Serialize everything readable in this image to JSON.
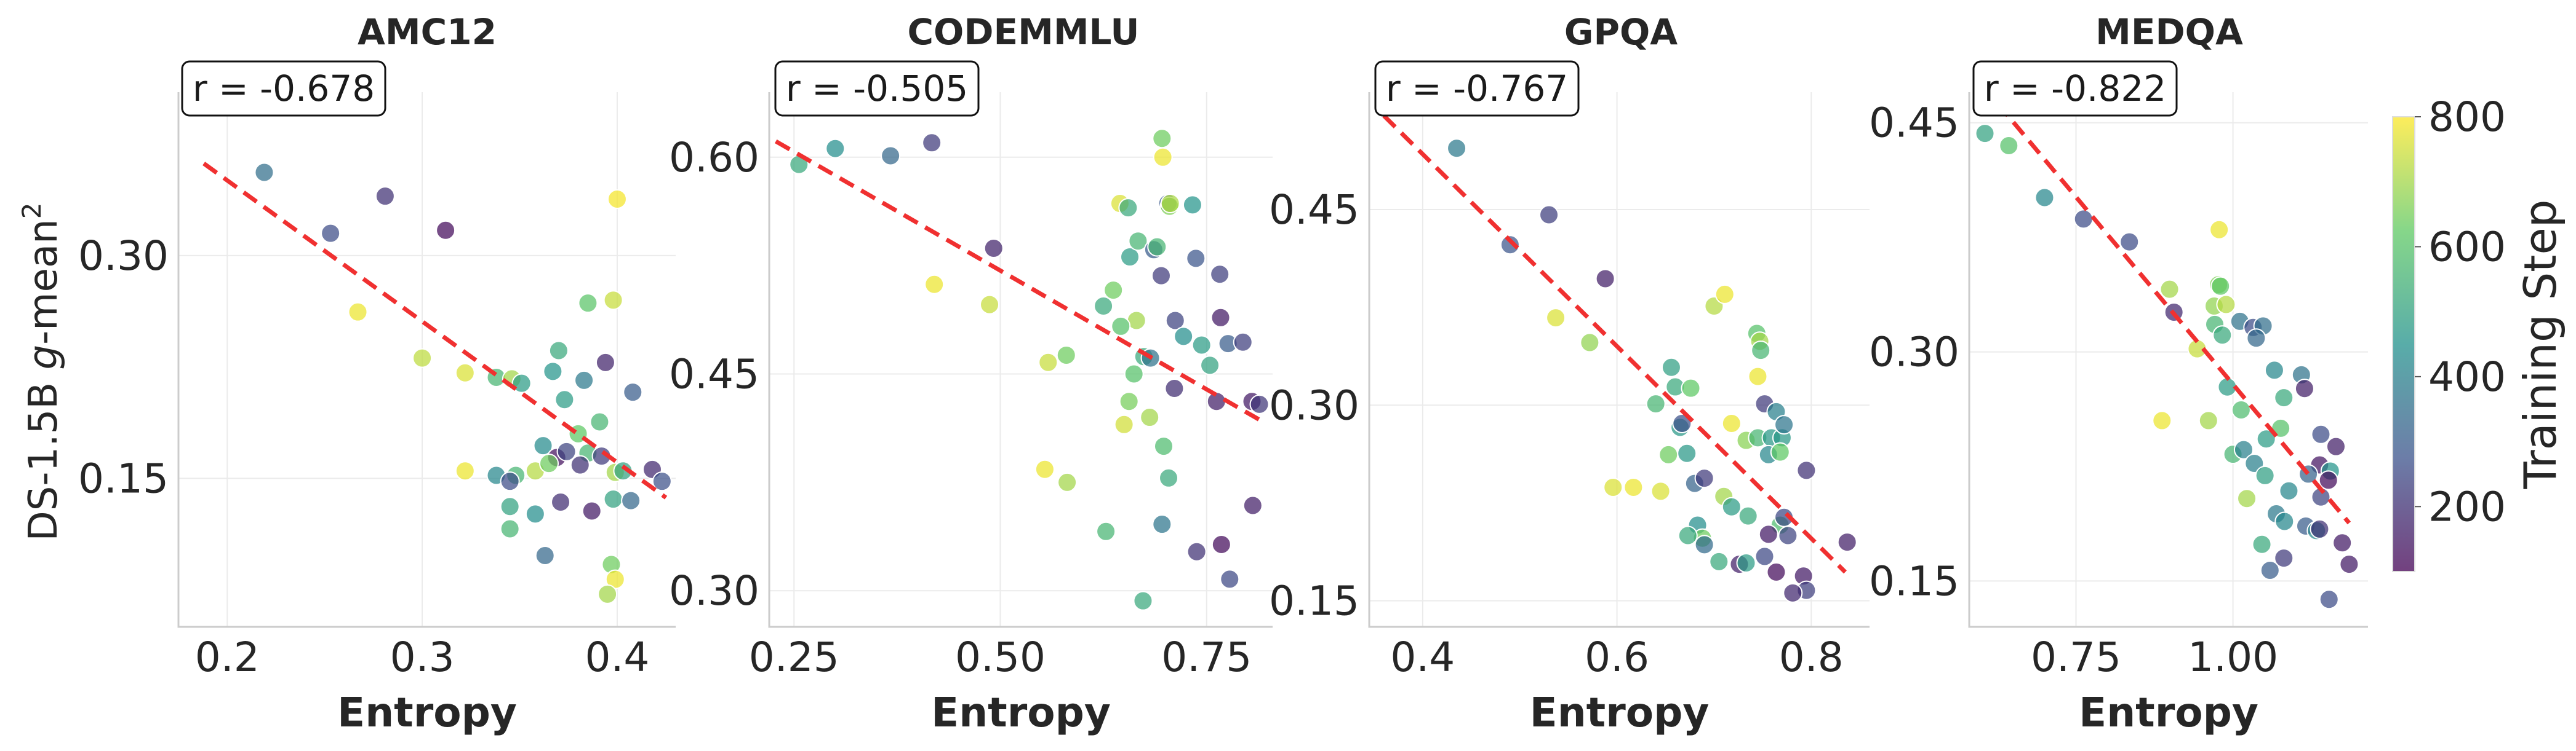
{
  "figure": {
    "ylabel": "DS-1.5B g-mean",
    "ylabel_prefix": "DS-1.5B ",
    "ylabel_italic": "g",
    "ylabel_suffix": "-mean",
    "ylabel_superscript": "2"
  },
  "colorbar": {
    "label": "Training Step",
    "colormap": "viridis",
    "range": [
      100,
      800
    ],
    "ticks": [
      200,
      400,
      600,
      800
    ],
    "tick_labels": [
      "200",
      "400",
      "600",
      "800"
    ],
    "gradient_colors": [
      "#440154",
      "#3b528b",
      "#21918c",
      "#5ec962",
      "#fde725"
    ]
  },
  "chart_data": [
    {
      "type": "scatter",
      "title": "AMC12",
      "xlabel": "Entropy",
      "xlim": [
        0.175,
        0.43
      ],
      "ylim": [
        0.05,
        0.41
      ],
      "xticks": [
        0.2,
        0.3,
        0.4
      ],
      "xtick_labels": [
        "0.2",
        "0.3",
        "0.4"
      ],
      "yticks": [
        0.15,
        0.3
      ],
      "ytick_labels": [
        "0.15",
        "0.30"
      ],
      "correlation_label": "r = -0.678",
      "trend_line": {
        "x": [
          0.188,
          0.425
        ],
        "y": [
          0.362,
          0.137
        ]
      },
      "points": [
        [
          0.219,
          0.356,
          350
        ],
        [
          0.253,
          0.315,
          260
        ],
        [
          0.281,
          0.34,
          200
        ],
        [
          0.312,
          0.317,
          120
        ],
        [
          0.267,
          0.262,
          780
        ],
        [
          0.3,
          0.231,
          730
        ],
        [
          0.322,
          0.221,
          760
        ],
        [
          0.338,
          0.218,
          560
        ],
        [
          0.346,
          0.217,
          700
        ],
        [
          0.351,
          0.214,
          480
        ],
        [
          0.37,
          0.236,
          520
        ],
        [
          0.367,
          0.222,
          460
        ],
        [
          0.383,
          0.216,
          380
        ],
        [
          0.394,
          0.228,
          170
        ],
        [
          0.408,
          0.208,
          300
        ],
        [
          0.385,
          0.268,
          610
        ],
        [
          0.398,
          0.27,
          740
        ],
        [
          0.373,
          0.203,
          480
        ],
        [
          0.38,
          0.18,
          620
        ],
        [
          0.391,
          0.188,
          560
        ],
        [
          0.362,
          0.172,
          430
        ],
        [
          0.369,
          0.164,
          130
        ],
        [
          0.374,
          0.168,
          240
        ],
        [
          0.385,
          0.167,
          560
        ],
        [
          0.392,
          0.165,
          220
        ],
        [
          0.399,
          0.154,
          700
        ],
        [
          0.403,
          0.155,
          500
        ],
        [
          0.418,
          0.156,
          180
        ],
        [
          0.423,
          0.148,
          270
        ],
        [
          0.338,
          0.152,
          420
        ],
        [
          0.348,
          0.152,
          560
        ],
        [
          0.345,
          0.148,
          260
        ],
        [
          0.322,
          0.155,
          780
        ],
        [
          0.358,
          0.155,
          720
        ],
        [
          0.365,
          0.16,
          640
        ],
        [
          0.381,
          0.159,
          200
        ],
        [
          0.345,
          0.131,
          500
        ],
        [
          0.358,
          0.126,
          440
        ],
        [
          0.371,
          0.134,
          190
        ],
        [
          0.387,
          0.128,
          150
        ],
        [
          0.398,
          0.136,
          500
        ],
        [
          0.407,
          0.135,
          330
        ],
        [
          0.345,
          0.116,
          560
        ],
        [
          0.363,
          0.098,
          330
        ],
        [
          0.397,
          0.092,
          640
        ],
        [
          0.399,
          0.082,
          780
        ],
        [
          0.395,
          0.072,
          700
        ],
        [
          0.4,
          0.338,
          790
        ]
      ]
    },
    {
      "type": "scatter",
      "title": "CODEMMLU",
      "xlabel": "Entropy",
      "xlim": [
        0.22,
        0.83
      ],
      "ylim": [
        0.275,
        0.645
      ],
      "xticks": [
        0.25,
        0.5,
        0.75
      ],
      "xtick_labels": [
        "0.25",
        "0.50",
        "0.75"
      ],
      "yticks": [
        0.3,
        0.45,
        0.6
      ],
      "ytick_labels": [
        "0.30",
        "0.45",
        "0.60"
      ],
      "correlation_label": "r = -0.505",
      "trend_line": {
        "x": [
          0.228,
          0.815
        ],
        "y": [
          0.611,
          0.418
        ]
      },
      "points": [
        [
          0.256,
          0.595,
          520
        ],
        [
          0.3,
          0.606,
          440
        ],
        [
          0.367,
          0.601,
          330
        ],
        [
          0.417,
          0.61,
          220
        ],
        [
          0.492,
          0.537,
          170
        ],
        [
          0.42,
          0.512,
          780
        ],
        [
          0.487,
          0.498,
          740
        ],
        [
          0.558,
          0.458,
          740
        ],
        [
          0.58,
          0.463,
          640
        ],
        [
          0.625,
          0.497,
          520
        ],
        [
          0.637,
          0.508,
          640
        ],
        [
          0.645,
          0.568,
          760
        ],
        [
          0.655,
          0.565,
          520
        ],
        [
          0.657,
          0.531,
          480
        ],
        [
          0.667,
          0.542,
          560
        ],
        [
          0.686,
          0.536,
          300
        ],
        [
          0.69,
          0.538,
          560
        ],
        [
          0.695,
          0.518,
          220
        ],
        [
          0.703,
          0.568,
          290
        ],
        [
          0.705,
          0.566,
          660
        ],
        [
          0.696,
          0.613,
          640
        ],
        [
          0.697,
          0.6,
          780
        ],
        [
          0.706,
          0.568,
          710
        ],
        [
          0.737,
          0.53,
          280
        ],
        [
          0.766,
          0.519,
          230
        ],
        [
          0.733,
          0.567,
          460
        ],
        [
          0.665,
          0.487,
          700
        ],
        [
          0.646,
          0.483,
          600
        ],
        [
          0.674,
          0.462,
          520
        ],
        [
          0.682,
          0.461,
          360
        ],
        [
          0.681,
          0.42,
          700
        ],
        [
          0.656,
          0.431,
          650
        ],
        [
          0.662,
          0.45,
          600
        ],
        [
          0.65,
          0.415,
          750
        ],
        [
          0.698,
          0.4,
          580
        ],
        [
          0.712,
          0.487,
          240
        ],
        [
          0.722,
          0.476,
          440
        ],
        [
          0.744,
          0.47,
          480
        ],
        [
          0.767,
          0.489,
          150
        ],
        [
          0.776,
          0.471,
          300
        ],
        [
          0.794,
          0.472,
          230
        ],
        [
          0.711,
          0.44,
          190
        ],
        [
          0.754,
          0.456,
          500
        ],
        [
          0.762,
          0.431,
          160
        ],
        [
          0.805,
          0.431,
          150
        ],
        [
          0.814,
          0.429,
          210
        ],
        [
          0.554,
          0.384,
          780
        ],
        [
          0.581,
          0.375,
          700
        ],
        [
          0.704,
          0.378,
          520
        ],
        [
          0.628,
          0.341,
          560
        ],
        [
          0.696,
          0.346,
          370
        ],
        [
          0.738,
          0.327,
          200
        ],
        [
          0.768,
          0.332,
          120
        ],
        [
          0.778,
          0.308,
          250
        ],
        [
          0.806,
          0.359,
          160
        ],
        [
          0.673,
          0.293,
          520
        ]
      ]
    },
    {
      "type": "scatter",
      "title": "GPQA",
      "xlabel": "Entropy",
      "xlim": [
        0.345,
        0.86
      ],
      "ylim": [
        0.13,
        0.54
      ],
      "xticks": [
        0.4,
        0.6,
        0.8
      ],
      "xtick_labels": [
        "0.4",
        "0.6",
        "0.8"
      ],
      "yticks": [
        0.15,
        0.3,
        0.45
      ],
      "ytick_labels": [
        "0.15",
        "0.30",
        "0.45"
      ],
      "correlation_label": "r = -0.767",
      "trend_line": {
        "x": [
          0.36,
          0.835
        ],
        "y": [
          0.522,
          0.172
        ]
      },
      "points": [
        [
          0.435,
          0.497,
          380
        ],
        [
          0.49,
          0.423,
          280
        ],
        [
          0.53,
          0.446,
          230
        ],
        [
          0.588,
          0.397,
          160
        ],
        [
          0.537,
          0.367,
          760
        ],
        [
          0.572,
          0.348,
          680
        ],
        [
          0.7,
          0.376,
          720
        ],
        [
          0.711,
          0.385,
          780
        ],
        [
          0.744,
          0.355,
          600
        ],
        [
          0.747,
          0.349,
          700
        ],
        [
          0.748,
          0.342,
          560
        ],
        [
          0.745,
          0.322,
          780
        ],
        [
          0.656,
          0.329,
          490
        ],
        [
          0.66,
          0.314,
          520
        ],
        [
          0.64,
          0.301,
          560
        ],
        [
          0.676,
          0.313,
          620
        ],
        [
          0.752,
          0.301,
          220
        ],
        [
          0.764,
          0.295,
          400
        ],
        [
          0.665,
          0.283,
          470
        ],
        [
          0.667,
          0.286,
          270
        ],
        [
          0.718,
          0.286,
          780
        ],
        [
          0.733,
          0.273,
          670
        ],
        [
          0.745,
          0.275,
          560
        ],
        [
          0.759,
          0.275,
          470
        ],
        [
          0.77,
          0.275,
          470
        ],
        [
          0.772,
          0.285,
          370
        ],
        [
          0.756,
          0.262,
          420
        ],
        [
          0.768,
          0.264,
          620
        ],
        [
          0.653,
          0.262,
          640
        ],
        [
          0.672,
          0.263,
          470
        ],
        [
          0.617,
          0.237,
          780
        ],
        [
          0.645,
          0.234,
          760
        ],
        [
          0.596,
          0.237,
          760
        ],
        [
          0.68,
          0.24,
          320
        ],
        [
          0.69,
          0.244,
          220
        ],
        [
          0.795,
          0.25,
          200
        ],
        [
          0.71,
          0.23,
          700
        ],
        [
          0.718,
          0.222,
          480
        ],
        [
          0.735,
          0.215,
          520
        ],
        [
          0.768,
          0.208,
          580
        ],
        [
          0.772,
          0.214,
          250
        ],
        [
          0.756,
          0.201,
          150
        ],
        [
          0.776,
          0.2,
          240
        ],
        [
          0.837,
          0.195,
          160
        ],
        [
          0.683,
          0.208,
          440
        ],
        [
          0.688,
          0.198,
          640
        ],
        [
          0.69,
          0.193,
          340
        ],
        [
          0.705,
          0.18,
          520
        ],
        [
          0.726,
          0.178,
          160
        ],
        [
          0.733,
          0.179,
          480
        ],
        [
          0.752,
          0.184,
          250
        ],
        [
          0.764,
          0.172,
          120
        ],
        [
          0.792,
          0.169,
          150
        ],
        [
          0.795,
          0.158,
          230
        ],
        [
          0.781,
          0.156,
          180
        ],
        [
          0.673,
          0.2,
          520
        ]
      ]
    },
    {
      "type": "scatter",
      "title": "MEDQA",
      "xlabel": "Entropy",
      "xlim": [
        0.58,
        1.215
      ],
      "ylim": [
        0.12,
        0.47
      ],
      "xticks": [
        0.75,
        1.0
      ],
      "xtick_labels": [
        "0.75",
        "1.00"
      ],
      "yticks": [
        0.15,
        0.3,
        0.45
      ],
      "ytick_labels": [
        "0.15",
        "0.30",
        "0.45"
      ],
      "correlation_label": "r = -0.822",
      "trend_line": {
        "x": [
          0.6,
          1.185
        ],
        "y": [
          0.475,
          0.188
        ]
      },
      "points": [
        [
          0.605,
          0.443,
          500
        ],
        [
          0.643,
          0.435,
          600
        ],
        [
          0.7,
          0.401,
          420
        ],
        [
          0.762,
          0.387,
          260
        ],
        [
          0.835,
          0.372,
          260
        ],
        [
          0.978,
          0.38,
          780
        ],
        [
          0.977,
          0.344,
          660
        ],
        [
          0.98,
          0.343,
          620
        ],
        [
          0.899,
          0.341,
          700
        ],
        [
          0.97,
          0.33,
          680
        ],
        [
          0.989,
          0.331,
          720
        ],
        [
          0.906,
          0.326,
          180
        ],
        [
          0.971,
          0.318,
          560
        ],
        [
          0.983,
          0.311,
          520
        ],
        [
          0.943,
          0.302,
          740
        ],
        [
          1.011,
          0.32,
          360
        ],
        [
          1.032,
          0.316,
          260
        ],
        [
          1.048,
          0.317,
          350
        ],
        [
          1.037,
          0.309,
          330
        ],
        [
          1.066,
          0.288,
          420
        ],
        [
          1.109,
          0.285,
          360
        ],
        [
          1.114,
          0.276,
          160
        ],
        [
          1.081,
          0.27,
          520
        ],
        [
          0.991,
          0.277,
          480
        ],
        [
          1.013,
          0.262,
          580
        ],
        [
          0.961,
          0.255,
          700
        ],
        [
          0.887,
          0.255,
          780
        ],
        [
          1.076,
          0.25,
          600
        ],
        [
          1.053,
          0.243,
          480
        ],
        [
          1.14,
          0.246,
          260
        ],
        [
          1.164,
          0.238,
          160
        ],
        [
          1.138,
          0.226,
          140
        ],
        [
          1.155,
          0.222,
          460
        ],
        [
          1.152,
          0.216,
          120
        ],
        [
          1.0,
          0.233,
          560
        ],
        [
          1.017,
          0.236,
          400
        ],
        [
          1.034,
          0.227,
          400
        ],
        [
          1.051,
          0.219,
          490
        ],
        [
          1.089,
          0.209,
          420
        ],
        [
          1.12,
          0.22,
          320
        ],
        [
          1.14,
          0.205,
          240
        ],
        [
          1.022,
          0.204,
          700
        ],
        [
          1.069,
          0.194,
          380
        ],
        [
          1.082,
          0.189,
          420
        ],
        [
          1.116,
          0.186,
          300
        ],
        [
          1.133,
          0.183,
          420
        ],
        [
          1.138,
          0.184,
          200
        ],
        [
          1.046,
          0.174,
          520
        ],
        [
          1.081,
          0.165,
          220
        ],
        [
          1.059,
          0.157,
          300
        ],
        [
          1.153,
          0.138,
          260
        ],
        [
          1.174,
          0.175,
          150
        ],
        [
          1.185,
          0.161,
          150
        ]
      ]
    }
  ]
}
